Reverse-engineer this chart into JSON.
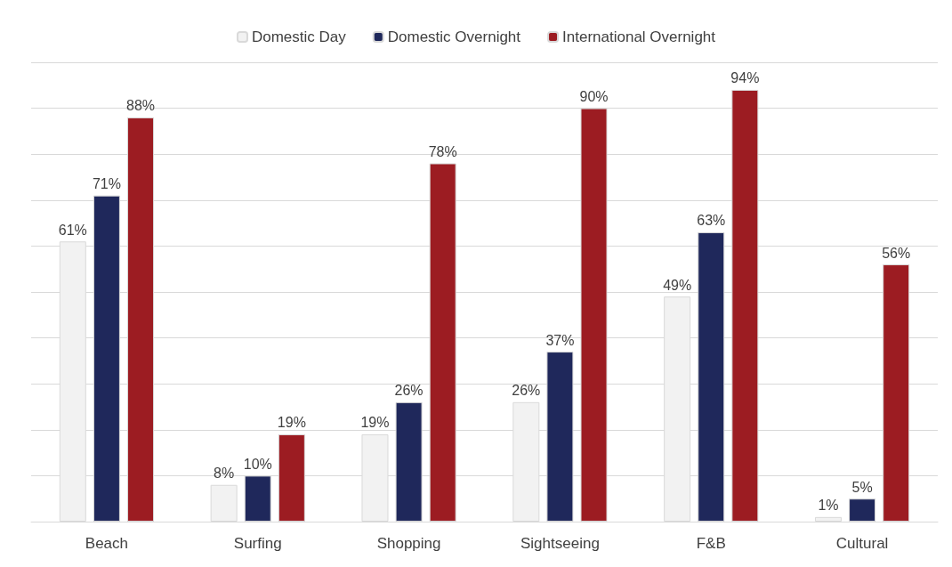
{
  "chart_data": {
    "type": "bar",
    "categories": [
      "Beach",
      "Surfing",
      "Shopping",
      "Sightseeing",
      "F&B",
      "Cultural"
    ],
    "series": [
      {
        "name": "Domestic Day",
        "color": "#f2f2f2",
        "values": [
          61,
          8,
          19,
          26,
          49,
          1
        ],
        "value_labels": [
          "61%",
          "8%",
          "19%",
          "26%",
          "49%",
          "1%"
        ]
      },
      {
        "name": "Domestic Overnight",
        "color": "#1f285b",
        "values": [
          71,
          10,
          26,
          37,
          63,
          5
        ],
        "value_labels": [
          "71%",
          "10%",
          "26%",
          "37%",
          "63%",
          "5%"
        ]
      },
      {
        "name": "International Overnight",
        "color": "#9c1c22",
        "values": [
          88,
          19,
          78,
          90,
          94,
          56
        ],
        "value_labels": [
          "88%",
          "19%",
          "78%",
          "90%",
          "94%",
          "56%"
        ]
      }
    ],
    "ylim": [
      0,
      100
    ],
    "yticks": [
      {
        "value": 0,
        "label": null
      },
      {
        "value": 10,
        "label": null
      },
      {
        "value": 20,
        "label": null
      },
      {
        "value": 30,
        "label": null
      },
      {
        "value": 40,
        "label": null
      },
      {
        "value": 50,
        "label": null
      },
      {
        "value": 60,
        "label": null
      },
      {
        "value": 70,
        "label": null
      },
      {
        "value": 80,
        "label": null
      },
      {
        "value": 90,
        "label": null
      },
      {
        "value": 100,
        "label": null
      }
    ],
    "grid": "y",
    "legend": "top",
    "tick_labels": "x"
  }
}
